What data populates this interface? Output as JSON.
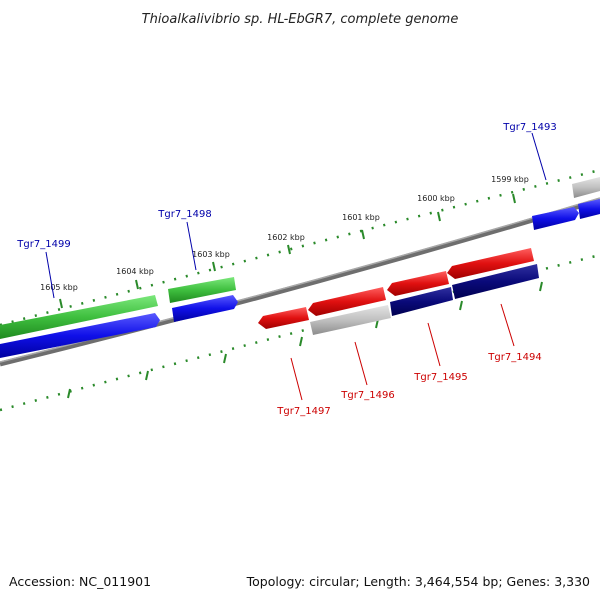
{
  "title": "Thioalkalivibrio sp. HL-EbGR7, complete genome",
  "footer": {
    "accession": "Accession: NC_011901",
    "summary": "Topology: circular; Length: 3,464,554 bp; Genes: 3,330"
  },
  "colors": {
    "backbone": "#8a8a8a",
    "tick": "#2a8a2a",
    "green_gene": "#3fbf3f",
    "blue_gene": "#1010e8",
    "red_gene": "#e01010",
    "navy_gene": "#0a0a7a",
    "gray_gene": "#b8b8b8",
    "label_forward": "#0000aa",
    "label_reverse": "#cc0000"
  },
  "kbp_labels": [
    "1599 kbp",
    "1600 kbp",
    "1601 kbp",
    "1602 kbp",
    "1603 kbp",
    "1604 kbp",
    "1605 kbp"
  ],
  "gene_labels_forward": [
    "Tgr7_1493",
    "Tgr7_1498",
    "Tgr7_1499"
  ],
  "gene_labels_reverse": [
    "Tgr7_1494",
    "Tgr7_1495",
    "Tgr7_1496",
    "Tgr7_1497"
  ]
}
